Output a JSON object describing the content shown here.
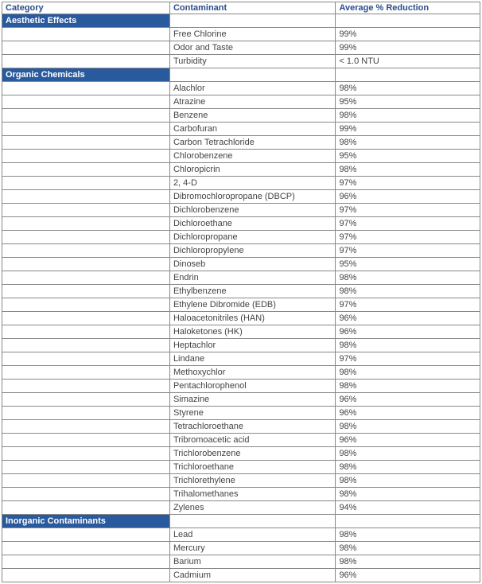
{
  "headers": [
    "Category",
    "Contaminant",
    "Average % Reduction"
  ],
  "categories": [
    {
      "name": "Aesthetic Effects",
      "rows": [
        {
          "contaminant": "Free Chlorine",
          "reduction": "99%"
        },
        {
          "contaminant": "Odor and Taste",
          "reduction": "99%"
        },
        {
          "contaminant": "Turbidity",
          "reduction": "< 1.0 NTU"
        }
      ]
    },
    {
      "name": "Organic Chemicals",
      "rows": [
        {
          "contaminant": "Alachlor",
          "reduction": "98%"
        },
        {
          "contaminant": "Atrazine",
          "reduction": "95%"
        },
        {
          "contaminant": "Benzene",
          "reduction": "98%"
        },
        {
          "contaminant": "Carbofuran",
          "reduction": "99%"
        },
        {
          "contaminant": "Carbon Tetrachloride",
          "reduction": "98%"
        },
        {
          "contaminant": "Chlorobenzene",
          "reduction": "95%"
        },
        {
          "contaminant": "Chloropicrin",
          "reduction": "98%"
        },
        {
          "contaminant": "2, 4-D",
          "reduction": "97%"
        },
        {
          "contaminant": "Dibromochloropropane (DBCP)",
          "reduction": "96%"
        },
        {
          "contaminant": "Dichlorobenzene",
          "reduction": "97%"
        },
        {
          "contaminant": "Dichloroethane",
          "reduction": "97%"
        },
        {
          "contaminant": "Dichloropropane",
          "reduction": "97%"
        },
        {
          "contaminant": "Dichloropropylene",
          "reduction": "97%"
        },
        {
          "contaminant": "Dinoseb",
          "reduction": "95%"
        },
        {
          "contaminant": "Endrin",
          "reduction": "98%"
        },
        {
          "contaminant": "Ethylbenzene",
          "reduction": "98%"
        },
        {
          "contaminant": "Ethylene Dibromide (EDB)",
          "reduction": "97%"
        },
        {
          "contaminant": "Haloacetonitriles (HAN)",
          "reduction": "96%"
        },
        {
          "contaminant": "Haloketones (HK)",
          "reduction": "96%"
        },
        {
          "contaminant": "Heptachlor",
          "reduction": "98%"
        },
        {
          "contaminant": "Lindane",
          "reduction": "97%"
        },
        {
          "contaminant": "Methoxychlor",
          "reduction": "98%"
        },
        {
          "contaminant": "Pentachlorophenol",
          "reduction": "98%"
        },
        {
          "contaminant": "Simazine",
          "reduction": "96%"
        },
        {
          "contaminant": "Styrene",
          "reduction": "96%"
        },
        {
          "contaminant": "Tetrachloroethane",
          "reduction": "98%"
        },
        {
          "contaminant": "Tribromoacetic acid",
          "reduction": "96%"
        },
        {
          "contaminant": "Trichlorobenzene",
          "reduction": "98%"
        },
        {
          "contaminant": "Trichloroethane",
          "reduction": "98%"
        },
        {
          "contaminant": "Trichlorethylene",
          "reduction": "98%"
        },
        {
          "contaminant": "Trihalomethanes",
          "reduction": "98%"
        },
        {
          "contaminant": "Zylenes",
          "reduction": "94%"
        }
      ]
    },
    {
      "name": "Inorganic Contaminants",
      "rows": [
        {
          "contaminant": "Lead",
          "reduction": "98%"
        },
        {
          "contaminant": "Mercury",
          "reduction": "98%"
        },
        {
          "contaminant": "Barium",
          "reduction": "98%"
        },
        {
          "contaminant": "Cadmium",
          "reduction": "96%"
        }
      ]
    }
  ],
  "colors": {
    "header_text": "#2a4d8a",
    "category_bg": "#2a5a9e",
    "category_text": "#ffffff",
    "cell_text": "#444444",
    "border": "#888888",
    "background": "#ffffff"
  },
  "font": {
    "family": "Verdana, Arial, sans-serif",
    "size_pt": 8
  }
}
